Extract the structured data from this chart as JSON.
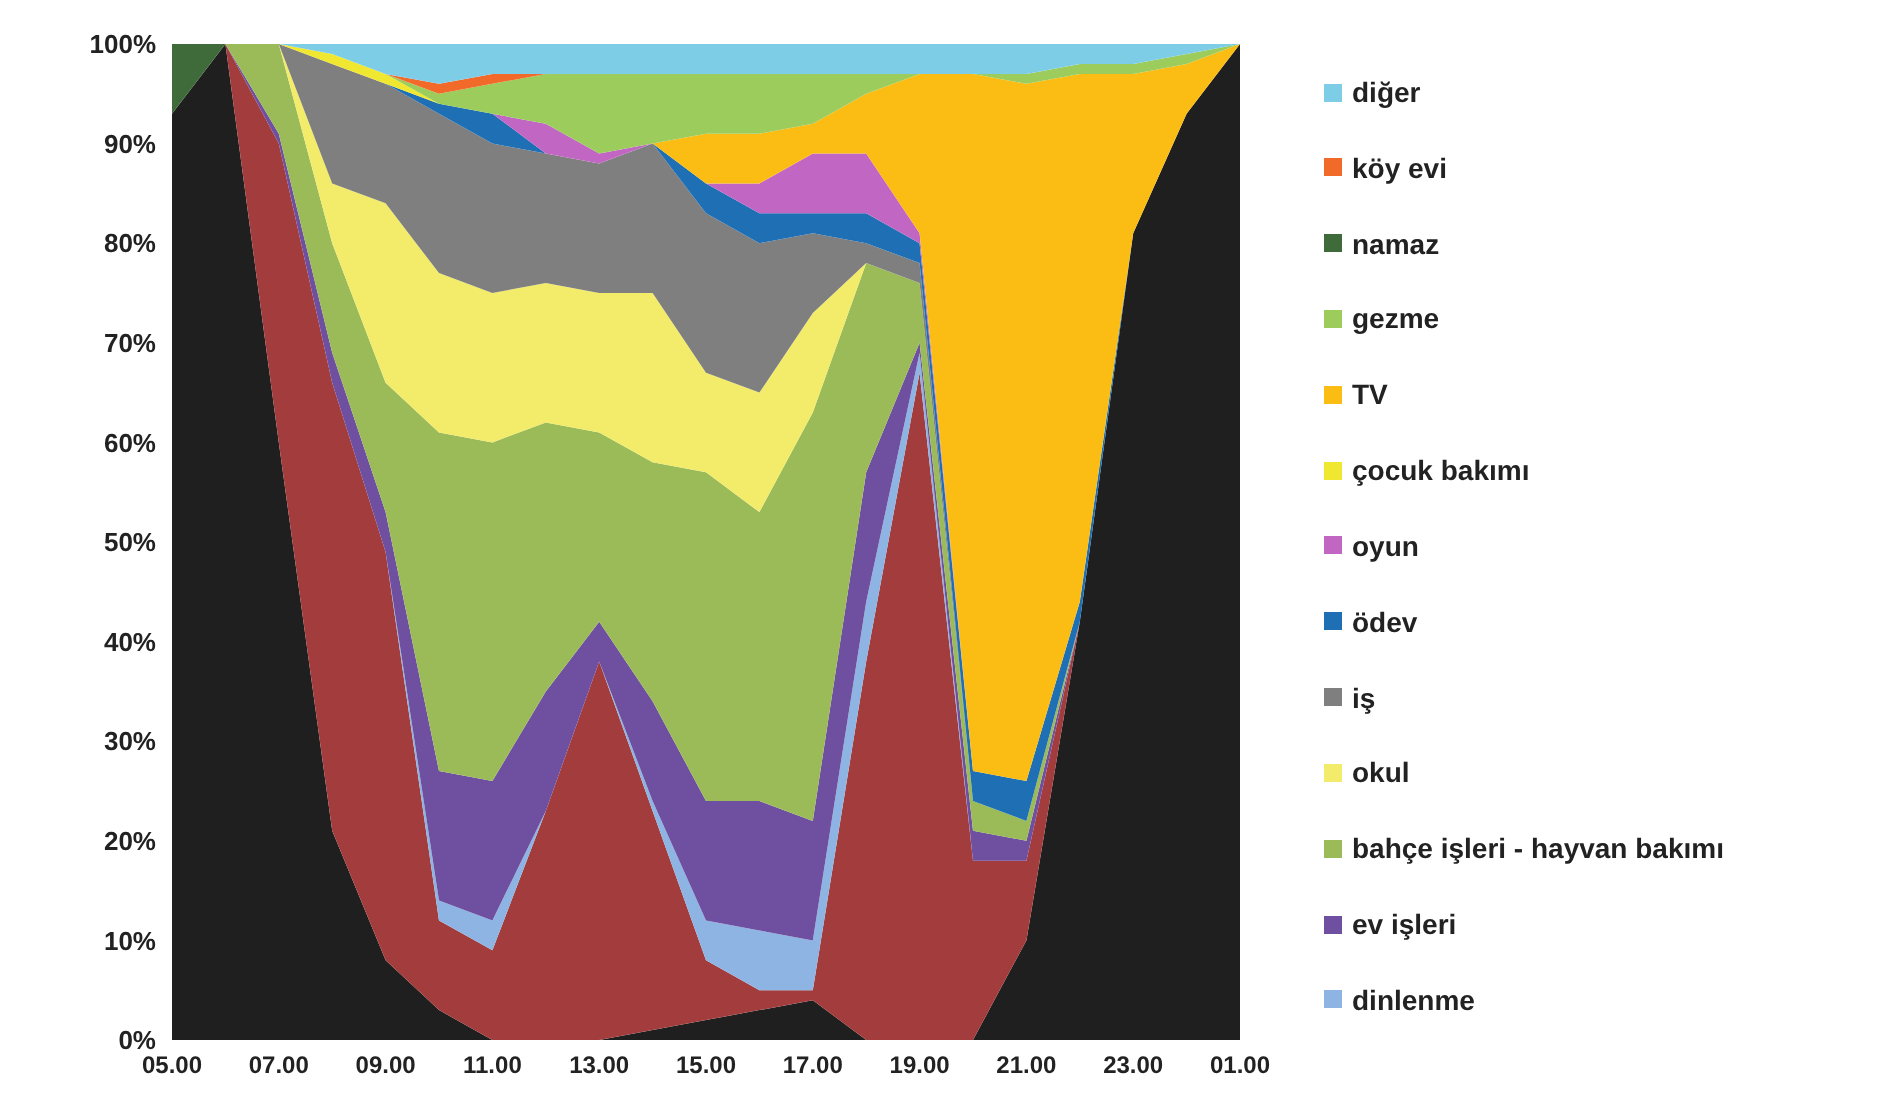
{
  "chart_data": {
    "type": "area",
    "stacked": true,
    "legend": "right",
    "grid": false,
    "categories": [
      "05.00",
      null,
      "07.00",
      null,
      "09.00",
      null,
      "11.00",
      null,
      "13.00",
      null,
      "15.00",
      null,
      "17.00",
      null,
      "19.00",
      null,
      "21.00",
      null,
      "23.00",
      null,
      "01.00"
    ],
    "ylim": [
      0,
      100
    ],
    "yticks": [
      {
        "value": 0,
        "label": "0%"
      },
      {
        "value": 10,
        "label": "10%"
      },
      {
        "value": 20,
        "label": "20%"
      },
      {
        "value": 30,
        "label": "30%"
      },
      {
        "value": 40,
        "label": "40%"
      },
      {
        "value": 50,
        "label": "50%"
      },
      {
        "value": 60,
        "label": "60%"
      },
      {
        "value": 70,
        "label": "70%"
      },
      {
        "value": 80,
        "label": "80%"
      },
      {
        "value": 90,
        "label": "90%"
      },
      {
        "value": 100,
        "label": "100%"
      }
    ],
    "series": [
      {
        "color": "#1f1f1f",
        "values": [
          93,
          100,
          60,
          21,
          8,
          3,
          0,
          null,
          0,
          1,
          2,
          3,
          4,
          0,
          null,
          0,
          10,
          42,
          81,
          93,
          100
        ]
      },
      {
        "color": "#a33c3c",
        "values": [
          null,
          0,
          30,
          45,
          41,
          9,
          9,
          23,
          38,
          22,
          6,
          2,
          1,
          38,
          67,
          18,
          8,
          0,
          null,
          null,
          null
        ]
      },
      {
        "name": "dinlenme",
        "color": "#8db4e2",
        "values": [
          null,
          null,
          null,
          null,
          0,
          2,
          3,
          0,
          0,
          1,
          4,
          6,
          5,
          6,
          2,
          0,
          null,
          null,
          null,
          null,
          null
        ]
      },
      {
        "name": "ev işleri",
        "color": "#6f4f9f",
        "values": [
          null,
          0,
          1,
          3,
          4,
          13,
          14,
          12,
          4,
          10,
          12,
          13,
          12,
          13,
          1,
          3,
          2,
          0,
          null,
          null,
          null
        ]
      },
      {
        "name": "bahçe işleri - hayvan bakımı",
        "color": "#9bbb59",
        "values": [
          null,
          0,
          9,
          11,
          13,
          34,
          34,
          27,
          19,
          24,
          33,
          29,
          41,
          21,
          6,
          3,
          2,
          0,
          null,
          null,
          null
        ]
      },
      {
        "name": "okul",
        "color": "#f2ec6a",
        "values": [
          null,
          null,
          0,
          6,
          18,
          16,
          15,
          14,
          14,
          17,
          10,
          12,
          10,
          0,
          null,
          null,
          null,
          null,
          null,
          null,
          null
        ]
      },
      {
        "name": "iş",
        "color": "#7f7f7f",
        "values": [
          null,
          null,
          0,
          12,
          12,
          16,
          15,
          13,
          13,
          15,
          16,
          15,
          8,
          2,
          2,
          0,
          null,
          null,
          null,
          null,
          null
        ]
      },
      {
        "name": "ödev",
        "color": "#1f6fb5",
        "values": [
          null,
          null,
          null,
          null,
          0,
          1,
          3,
          0,
          null,
          0,
          3,
          3,
          2,
          3,
          2,
          3,
          4,
          2,
          0,
          null,
          null
        ]
      },
      {
        "name": "oyun",
        "color": "#c266c4",
        "values": [
          null,
          null,
          null,
          null,
          null,
          null,
          0,
          3,
          1,
          0,
          0,
          3,
          6,
          6,
          1,
          0,
          null,
          null,
          null,
          null,
          null
        ]
      },
      {
        "name": "çocuk bakımı",
        "color": "#f0e830",
        "values": [
          null,
          null,
          0,
          1,
          1,
          0,
          null,
          null,
          null,
          null,
          null,
          null,
          null,
          null,
          null,
          null,
          null,
          null,
          null,
          null,
          null
        ]
      },
      {
        "name": "TV",
        "color": "#fbbd14",
        "values": [
          null,
          null,
          null,
          null,
          null,
          null,
          null,
          null,
          null,
          0,
          5,
          5,
          3,
          6,
          16,
          70,
          70,
          53,
          16,
          5,
          0
        ]
      },
      {
        "name": "gezme",
        "color": "#9ccc5c",
        "values": [
          null,
          null,
          null,
          null,
          0,
          1,
          3,
          5,
          8,
          7,
          6,
          6,
          5,
          2,
          0,
          0,
          1,
          1,
          1,
          1,
          0
        ]
      },
      {
        "name": "namaz",
        "color": "#3f6b3a",
        "values": [
          7,
          0,
          null,
          null,
          null,
          null,
          null,
          null,
          null,
          null,
          null,
          null,
          null,
          null,
          null,
          null,
          null,
          null,
          null,
          null,
          null
        ]
      },
      {
        "name": "köy evi",
        "color": "#f26a2a",
        "values": [
          null,
          null,
          null,
          null,
          0,
          1,
          1,
          0,
          null,
          null,
          null,
          null,
          null,
          null,
          null,
          null,
          null,
          null,
          null,
          null,
          null
        ]
      },
      {
        "name": "diğer",
        "color": "#7ecde6",
        "values": [
          null,
          null,
          0,
          1,
          3,
          4,
          3,
          3,
          3,
          3,
          3,
          3,
          3,
          3,
          3,
          3,
          3,
          2,
          2,
          1,
          0
        ]
      }
    ]
  }
}
